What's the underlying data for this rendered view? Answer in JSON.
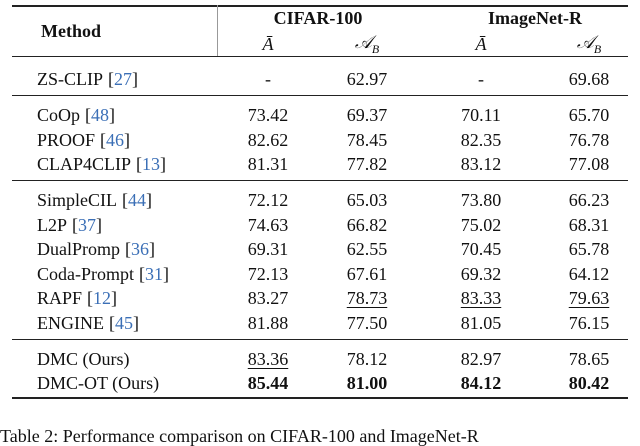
{
  "table": {
    "header": {
      "method": "Method",
      "groups": [
        "CIFAR-100",
        "ImageNet-R"
      ],
      "sub_headers": [
        {
          "main": "Ā"
        },
        {
          "main": "𝒜",
          "sub": "B"
        },
        {
          "main": "Ā"
        },
        {
          "main": "𝒜",
          "sub": "B"
        }
      ]
    },
    "groups": [
      {
        "rows": [
          {
            "method": "ZS-CLIP",
            "ref": "[27]",
            "cells": [
              {
                "text": "-"
              },
              {
                "text": "62.97"
              },
              {
                "text": "-"
              },
              {
                "text": "69.68"
              }
            ]
          }
        ]
      },
      {
        "rows": [
          {
            "method": "CoOp",
            "ref": "[48]",
            "cells": [
              {
                "text": "73.42"
              },
              {
                "text": "69.37"
              },
              {
                "text": "70.11"
              },
              {
                "text": "65.70"
              }
            ]
          },
          {
            "method": "PROOF",
            "ref": "[46]",
            "cells": [
              {
                "text": "82.62"
              },
              {
                "text": "78.45"
              },
              {
                "text": "82.35"
              },
              {
                "text": "76.78"
              }
            ]
          },
          {
            "method": "CLAP4CLIP",
            "ref": "[13]",
            "cells": [
              {
                "text": "81.31"
              },
              {
                "text": "77.82"
              },
              {
                "text": "83.12"
              },
              {
                "text": "77.08"
              }
            ]
          }
        ]
      },
      {
        "rows": [
          {
            "method": "SimpleCIL",
            "ref": "[44]",
            "cells": [
              {
                "text": "72.12"
              },
              {
                "text": "65.03"
              },
              {
                "text": "73.80"
              },
              {
                "text": "66.23"
              }
            ]
          },
          {
            "method": "L2P",
            "ref": "[37]",
            "cells": [
              {
                "text": "74.63"
              },
              {
                "text": "66.82"
              },
              {
                "text": "75.02"
              },
              {
                "text": "68.31"
              }
            ]
          },
          {
            "method": "DualPromp",
            "ref": "[36]",
            "cells": [
              {
                "text": "69.31"
              },
              {
                "text": "62.55"
              },
              {
                "text": "70.45"
              },
              {
                "text": "65.78"
              }
            ]
          },
          {
            "method": "Coda-Prompt",
            "ref": "[31]",
            "cells": [
              {
                "text": "72.13"
              },
              {
                "text": "67.61"
              },
              {
                "text": "69.32"
              },
              {
                "text": "64.12"
              }
            ]
          },
          {
            "method": "RAPF",
            "ref": "[12]",
            "cells": [
              {
                "text": "83.27"
              },
              {
                "text": "78.73",
                "style": "underline"
              },
              {
                "text": "83.33",
                "style": "underline"
              },
              {
                "text": "79.63",
                "style": "underline"
              }
            ]
          },
          {
            "method": "ENGINE",
            "ref": "[45]",
            "cells": [
              {
                "text": "81.88"
              },
              {
                "text": "77.50"
              },
              {
                "text": "81.05"
              },
              {
                "text": "76.15"
              }
            ]
          }
        ]
      },
      {
        "rows": [
          {
            "method": "DMC (Ours)",
            "cells": [
              {
                "text": "83.36",
                "style": "underline"
              },
              {
                "text": "78.12"
              },
              {
                "text": "82.97"
              },
              {
                "text": "78.65"
              }
            ]
          },
          {
            "method": "DMC-OT (Ours)",
            "cells": [
              {
                "text": "85.44",
                "style": "bold"
              },
              {
                "text": "81.00",
                "style": "bold"
              },
              {
                "text": "84.12",
                "style": "bold"
              },
              {
                "text": "80.42",
                "style": "bold"
              }
            ]
          }
        ]
      }
    ]
  },
  "caption": "Table 2: Performance comparison on CIFAR-100 and ImageNet-R"
}
